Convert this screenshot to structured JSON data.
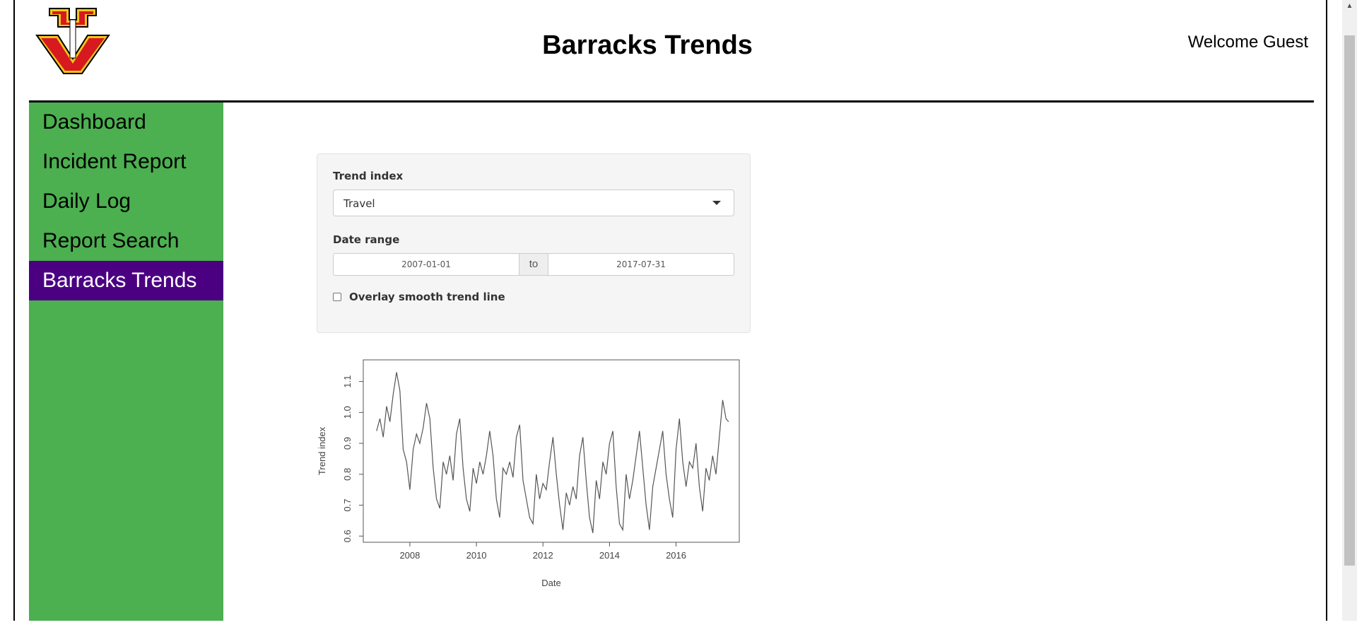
{
  "header": {
    "title": "Barracks Trends",
    "welcome": "Welcome Guest",
    "logo_colors": {
      "fill": "#d71920",
      "outline": "#f5c518",
      "stroke": "#000000"
    }
  },
  "sidebar": {
    "items": [
      {
        "label": "Dashboard",
        "active": false
      },
      {
        "label": "Incident Report",
        "active": false
      },
      {
        "label": "Daily Log",
        "active": false
      },
      {
        "label": "Report Search",
        "active": false
      },
      {
        "label": "Barracks Trends",
        "active": true
      }
    ],
    "colors": {
      "background": "#4caf50",
      "active": "#4b0082"
    }
  },
  "controls": {
    "trend_index": {
      "label": "Trend index",
      "value": "Travel"
    },
    "date_range": {
      "label": "Date range",
      "start": "2007-01-01",
      "separator": "to",
      "end": "2017-07-31"
    },
    "smooth": {
      "label": "Overlay smooth trend line",
      "checked": false
    }
  },
  "chart_data": {
    "type": "line",
    "xlabel": "Date",
    "ylabel": "Trend index",
    "xlim": [
      2006.6,
      2017.9
    ],
    "ylim": [
      0.58,
      1.17
    ],
    "x_ticks": [
      2008,
      2010,
      2012,
      2014,
      2016
    ],
    "y_ticks": [
      0.6,
      0.7,
      0.8,
      0.9,
      1.0,
      1.1
    ],
    "grid": false,
    "line_color": "#555555",
    "series": [
      {
        "x": [
          2007.0,
          2007.1,
          2007.2,
          2007.3,
          2007.4,
          2007.5,
          2007.6,
          2007.7,
          2007.8,
          2007.9,
          2008.0,
          2008.1,
          2008.2,
          2008.3,
          2008.4,
          2008.5,
          2008.6,
          2008.7,
          2008.8,
          2008.9,
          2009.0,
          2009.1,
          2009.2,
          2009.3,
          2009.4,
          2009.5,
          2009.6,
          2009.7,
          2009.8,
          2009.9,
          2010.0,
          2010.1,
          2010.2,
          2010.3,
          2010.4,
          2010.5,
          2010.6,
          2010.7,
          2010.8,
          2010.9,
          2011.0,
          2011.1,
          2011.2,
          2011.3,
          2011.4,
          2011.5,
          2011.6,
          2011.7,
          2011.8,
          2011.9,
          2012.0,
          2012.1,
          2012.2,
          2012.3,
          2012.4,
          2012.5,
          2012.6,
          2012.7,
          2012.8,
          2012.9,
          2013.0,
          2013.1,
          2013.2,
          2013.3,
          2013.4,
          2013.5,
          2013.6,
          2013.7,
          2013.8,
          2013.9,
          2014.0,
          2014.1,
          2014.2,
          2014.3,
          2014.4,
          2014.5,
          2014.6,
          2014.7,
          2014.8,
          2014.9,
          2015.0,
          2015.1,
          2015.2,
          2015.3,
          2015.4,
          2015.5,
          2015.6,
          2015.7,
          2015.8,
          2015.9,
          2016.0,
          2016.1,
          2016.2,
          2016.3,
          2016.4,
          2016.5,
          2016.6,
          2016.7,
          2016.8,
          2016.9,
          2017.0,
          2017.1,
          2017.2,
          2017.3,
          2017.4,
          2017.5,
          2017.58
        ],
        "y": [
          0.94,
          0.98,
          0.92,
          1.02,
          0.97,
          1.06,
          1.13,
          1.07,
          0.88,
          0.84,
          0.75,
          0.88,
          0.93,
          0.9,
          0.95,
          1.03,
          0.98,
          0.82,
          0.72,
          0.69,
          0.84,
          0.8,
          0.86,
          0.78,
          0.93,
          0.98,
          0.82,
          0.72,
          0.68,
          0.82,
          0.77,
          0.84,
          0.8,
          0.86,
          0.94,
          0.86,
          0.72,
          0.66,
          0.82,
          0.8,
          0.84,
          0.79,
          0.92,
          0.96,
          0.78,
          0.72,
          0.66,
          0.64,
          0.8,
          0.72,
          0.77,
          0.75,
          0.84,
          0.92,
          0.8,
          0.7,
          0.62,
          0.74,
          0.7,
          0.76,
          0.72,
          0.86,
          0.92,
          0.78,
          0.66,
          0.61,
          0.78,
          0.72,
          0.84,
          0.8,
          0.9,
          0.94,
          0.76,
          0.64,
          0.62,
          0.8,
          0.72,
          0.78,
          0.86,
          0.94,
          0.82,
          0.7,
          0.62,
          0.76,
          0.82,
          0.88,
          0.94,
          0.8,
          0.72,
          0.66,
          0.88,
          0.98,
          0.84,
          0.76,
          0.84,
          0.82,
          0.9,
          0.76,
          0.68,
          0.82,
          0.78,
          0.86,
          0.8,
          0.92,
          1.04,
          0.98,
          0.97
        ]
      }
    ]
  }
}
